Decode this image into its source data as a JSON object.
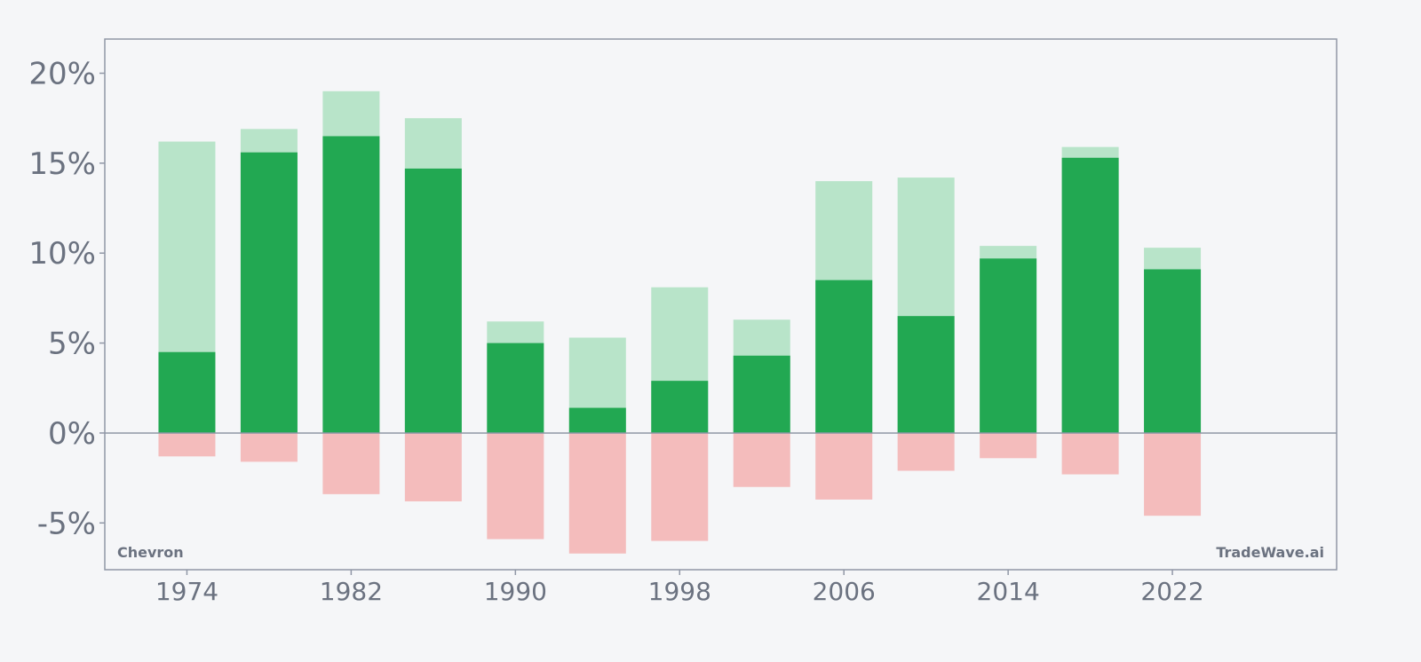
{
  "chart_data": {
    "type": "bar",
    "title": "",
    "xlabel": "",
    "ylabel": "",
    "x": [
      1974,
      1978,
      1982,
      1986,
      1990,
      1994,
      1998,
      2002,
      2006,
      2010,
      2014,
      2018,
      2022
    ],
    "series": [
      {
        "role": "high",
        "color": "#b8e4c9",
        "values": [
          16.2,
          16.9,
          19.0,
          17.5,
          6.2,
          5.3,
          8.1,
          6.3,
          14.0,
          14.2,
          10.4,
          15.9,
          10.3
        ]
      },
      {
        "role": "close",
        "color": "#22a852",
        "values": [
          4.5,
          15.6,
          16.5,
          14.7,
          5.0,
          1.4,
          2.9,
          4.3,
          8.5,
          6.5,
          9.7,
          15.3,
          9.1
        ]
      },
      {
        "role": "low",
        "color": "#f4bcbc",
        "values": [
          -1.3,
          -1.6,
          -3.4,
          -3.8,
          -5.9,
          -6.7,
          -6.0,
          -3.0,
          -3.7,
          -2.1,
          -1.4,
          -2.3,
          -4.6
        ]
      }
    ],
    "xlim": [
      1970,
      2030
    ],
    "ylim": [
      -7.6,
      21.9
    ],
    "yticks": [
      -5,
      0,
      5,
      10,
      15,
      20
    ],
    "ytick_labels": [
      "-5%",
      "0%",
      "5%",
      "10%",
      "15%",
      "20%"
    ],
    "xticks": [
      1974,
      1982,
      1990,
      1998,
      2006,
      2014,
      2022
    ],
    "xtick_labels": [
      "1974",
      "1982",
      "1990",
      "1998",
      "2006",
      "2014",
      "2022"
    ],
    "grid": false,
    "legend": "none",
    "annotations": {
      "bottom_left": "Chevron",
      "bottom_right": "TradeWave.ai"
    }
  },
  "colors": {
    "background": "#f5f6f8",
    "axis": "#9097a6",
    "text": "#6b7280"
  }
}
